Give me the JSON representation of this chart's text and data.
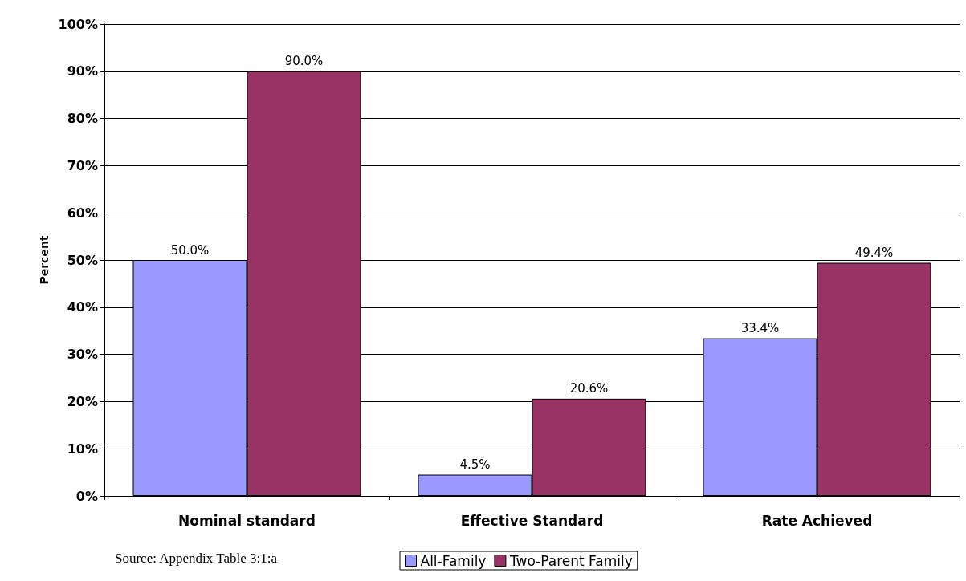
{
  "chart_data": {
    "type": "bar",
    "ylabel": "Percent",
    "categories": [
      "Nominal standard",
      "Effective Standard",
      "Rate Achieved"
    ],
    "series": [
      {
        "name": "All-Family",
        "color": "#9999ff",
        "values": [
          50.0,
          4.5,
          33.4
        ],
        "value_labels": [
          "50.0%",
          "4.5%",
          "33.4%"
        ]
      },
      {
        "name": "Two-Parent Family",
        "color": "#993366",
        "values": [
          90.0,
          20.6,
          49.4
        ],
        "value_labels": [
          "90.0%",
          "20.6%",
          "49.4%"
        ]
      }
    ],
    "ylim": [
      0,
      100
    ],
    "yticks": [
      {
        "value": 0,
        "label": "0%"
      },
      {
        "value": 10,
        "label": "10%"
      },
      {
        "value": 20,
        "label": "20%"
      },
      {
        "value": 30,
        "label": "30%"
      },
      {
        "value": 40,
        "label": "40%"
      },
      {
        "value": 50,
        "label": "50%"
      },
      {
        "value": 60,
        "label": "60%"
      },
      {
        "value": 70,
        "label": "70%"
      },
      {
        "value": 80,
        "label": "80%"
      },
      {
        "value": 90,
        "label": "90%"
      },
      {
        "value": 100,
        "label": "100%"
      }
    ],
    "grid": "y",
    "legend": "bottom",
    "annotations": [
      "Source: Appendix Table 3:1:a"
    ]
  }
}
